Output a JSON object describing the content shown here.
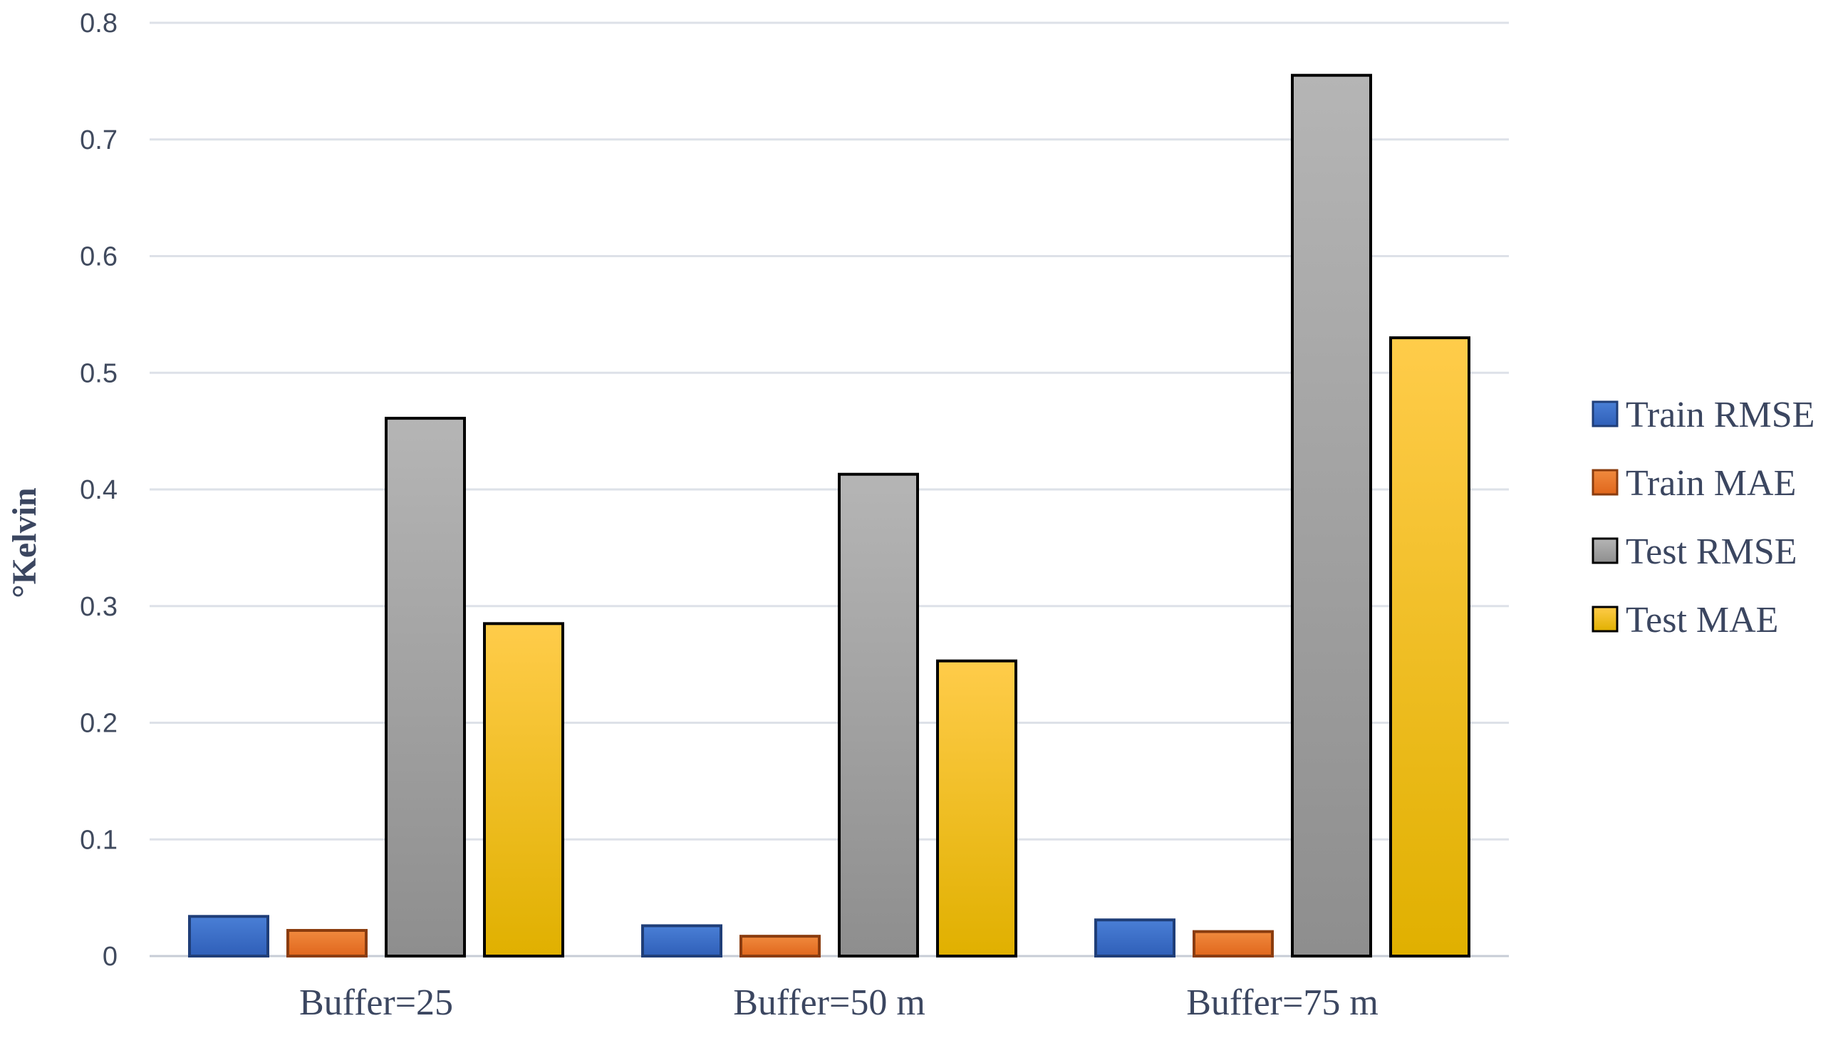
{
  "chart_data": {
    "type": "bar",
    "title": "",
    "xlabel": "",
    "ylabel": "°Kelvin",
    "ylim": [
      0,
      0.8
    ],
    "yticks": [
      "0",
      "0.1",
      "0.2",
      "0.3",
      "0.4",
      "0.5",
      "0.6",
      "0.7",
      "0.8"
    ],
    "categories": [
      "Buffer=25",
      "Buffer=50 m",
      "Buffer=75 m"
    ],
    "grid": true,
    "legend_position": "right",
    "series": [
      {
        "name": "Train RMSE",
        "values": [
          0.034,
          0.026,
          0.031
        ],
        "color_top": "#4a7fd6",
        "color_bottom": "#2f5fb8",
        "border": "#1f3e78"
      },
      {
        "name": "Train MAE",
        "values": [
          0.022,
          0.017,
          0.021
        ],
        "color_top": "#f08a3e",
        "color_bottom": "#e0661c",
        "border": "#8a3c0e"
      },
      {
        "name": "Test RMSE",
        "values": [
          0.461,
          0.413,
          0.755
        ],
        "color_top": "#b5b5b5",
        "color_bottom": "#8e8e8e",
        "border": "#000000"
      },
      {
        "name": "Test MAE",
        "values": [
          0.285,
          0.253,
          0.53
        ],
        "color_top": "#ffcc4a",
        "color_bottom": "#e0b000",
        "border": "#000000"
      }
    ]
  }
}
